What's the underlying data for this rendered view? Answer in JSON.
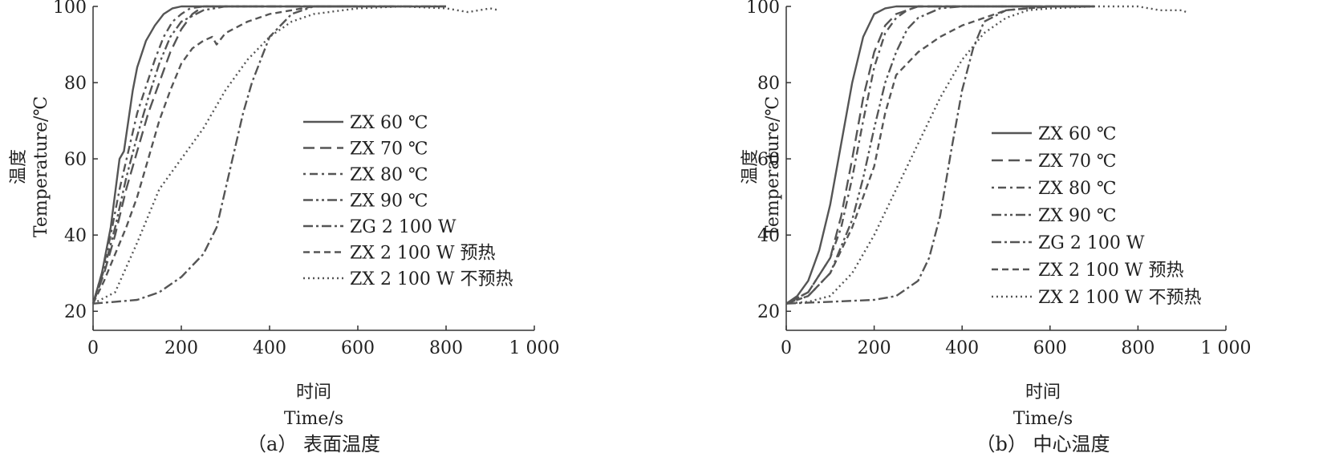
{
  "chart_data": [
    {
      "type": "line",
      "panel": "a",
      "caption": "（a） 表面温度",
      "xlabel_cn": "时间",
      "xlabel_en": "Time/s",
      "ylabel_cn": "温度",
      "ylabel_en": "Temperature/℃",
      "xlim": [
        0,
        1000
      ],
      "ylim": [
        15,
        100
      ],
      "xticks": [
        0,
        200,
        400,
        600,
        800,
        1000
      ],
      "xtick_labels": [
        "0",
        "200",
        "400",
        "600",
        "800",
        "1 000"
      ],
      "yticks": [
        20,
        40,
        60,
        80,
        100
      ],
      "ytick_labels": [
        "20",
        "40",
        "60",
        "80",
        "100"
      ],
      "grid": false,
      "legend_position": "center-right",
      "series": [
        {
          "name": "ZX 60 ℃",
          "dash": "solid",
          "x": [
            0,
            20,
            40,
            60,
            70,
            80,
            90,
            100,
            120,
            140,
            160,
            180,
            200,
            220,
            240,
            300,
            400,
            600,
            800
          ],
          "y": [
            22,
            30,
            42,
            60,
            62,
            70,
            78,
            84,
            91,
            95,
            98,
            99.5,
            100,
            100,
            100,
            100,
            100,
            100,
            100
          ]
        },
        {
          "name": "ZX 70 ℃",
          "dash": "long-dash",
          "x": [
            0,
            25,
            50,
            75,
            100,
            125,
            150,
            175,
            200,
            225,
            250,
            300,
            400,
            600
          ],
          "y": [
            22,
            30,
            40,
            52,
            62,
            72,
            80,
            88,
            94,
            98,
            100,
            100,
            100,
            100
          ]
        },
        {
          "name": "ZX 80 ℃",
          "dash": "dot-dash",
          "x": [
            0,
            20,
            40,
            60,
            80,
            100,
            120,
            140,
            160,
            180,
            200,
            220,
            250,
            300,
            400,
            600
          ],
          "y": [
            22,
            30,
            40,
            52,
            62,
            72,
            79,
            86,
            92,
            96,
            98,
            99.5,
            100,
            100,
            100,
            100
          ]
        },
        {
          "name": "ZX 90 ℃",
          "dash": "dash-dot-dot",
          "x": [
            0,
            25,
            50,
            75,
            100,
            125,
            150,
            175,
            200,
            250,
            300,
            400,
            600
          ],
          "y": [
            22,
            31,
            42,
            55,
            66,
            76,
            85,
            92,
            96,
            99,
            100,
            100,
            100
          ]
        },
        {
          "name": "ZG 2 100 W",
          "dash": "dash-dot",
          "x": [
            0,
            50,
            100,
            150,
            200,
            250,
            280,
            300,
            320,
            340,
            360,
            380,
            400,
            450,
            500,
            600,
            800
          ],
          "y": [
            22,
            22.5,
            23,
            25,
            29,
            35,
            42,
            52,
            62,
            72,
            80,
            86,
            92,
            98,
            100,
            100,
            100
          ]
        },
        {
          "name": "ZX 2 100 W 预热",
          "dash": "dash",
          "x": [
            0,
            25,
            50,
            75,
            100,
            125,
            150,
            175,
            200,
            225,
            250,
            270,
            280,
            300,
            350,
            400,
            450,
            500,
            600,
            700
          ],
          "y": [
            22,
            28,
            35,
            42,
            50,
            60,
            70,
            78,
            85,
            89,
            91,
            92,
            90,
            93,
            96,
            98,
            99,
            100,
            100,
            100
          ]
        },
        {
          "name": "ZX 2 100 W 不预热",
          "dash": "dotted",
          "x": [
            0,
            50,
            100,
            150,
            200,
            250,
            300,
            350,
            400,
            450,
            500,
            600,
            700,
            800,
            850,
            900,
            920
          ],
          "y": [
            22,
            25,
            38,
            52,
            60,
            68,
            78,
            86,
            92,
            96,
            98,
            99.5,
            100,
            99.5,
            98.5,
            99.5,
            99
          ]
        }
      ]
    },
    {
      "type": "line",
      "panel": "b",
      "caption": "（b） 中心温度",
      "xlabel_cn": "时间",
      "xlabel_en": "Time/s",
      "ylabel_cn": "温度",
      "ylabel_en": "Temperature/℃",
      "xlim": [
        0,
        1000
      ],
      "ylim": [
        15,
        100
      ],
      "xticks": [
        0,
        200,
        400,
        600,
        800,
        1000
      ],
      "xtick_labels": [
        "0",
        "200",
        "400",
        "600",
        "800",
        "1 000"
      ],
      "yticks": [
        20,
        40,
        60,
        80,
        100
      ],
      "ytick_labels": [
        "20",
        "40",
        "60",
        "80",
        "100"
      ],
      "grid": false,
      "legend_position": "center-right",
      "series": [
        {
          "name": "ZX 60 ℃",
          "dash": "solid",
          "x": [
            0,
            25,
            50,
            75,
            100,
            125,
            150,
            175,
            200,
            225,
            250,
            300,
            400,
            600,
            700
          ],
          "y": [
            22,
            24,
            28,
            36,
            48,
            64,
            80,
            92,
            98,
            99.5,
            100,
            100,
            100,
            100,
            100
          ]
        },
        {
          "name": "ZX 70 ℃",
          "dash": "long-dash",
          "x": [
            0,
            50,
            100,
            125,
            150,
            175,
            200,
            225,
            250,
            300,
            400,
            600,
            700
          ],
          "y": [
            22,
            25,
            34,
            45,
            60,
            76,
            88,
            95,
            98,
            100,
            100,
            100,
            100
          ]
        },
        {
          "name": "ZX 80 ℃",
          "dash": "dot-dash",
          "x": [
            0,
            50,
            100,
            125,
            150,
            175,
            200,
            225,
            250,
            275,
            300,
            400,
            600,
            700
          ],
          "y": [
            22,
            25,
            34,
            42,
            55,
            70,
            84,
            93,
            97,
            99,
            100,
            100,
            100,
            100
          ]
        },
        {
          "name": "ZX 90 ℃",
          "dash": "dash-dot-dot",
          "x": [
            0,
            50,
            100,
            150,
            175,
            200,
            225,
            250,
            275,
            300,
            350,
            400,
            600,
            700
          ],
          "y": [
            22,
            24,
            30,
            44,
            55,
            68,
            80,
            88,
            94,
            97,
            99.5,
            100,
            100,
            100
          ]
        },
        {
          "name": "ZG 2 100 W",
          "dash": "dash-dot",
          "x": [
            0,
            100,
            200,
            250,
            300,
            325,
            350,
            375,
            400,
            425,
            450,
            500,
            600,
            700
          ],
          "y": [
            22,
            22.5,
            23,
            24,
            28,
            34,
            45,
            62,
            78,
            89,
            96,
            99,
            100,
            100
          ]
        },
        {
          "name": "ZX 2 100 W 预热",
          "dash": "dash",
          "x": [
            0,
            50,
            100,
            150,
            200,
            225,
            250,
            300,
            350,
            400,
            450,
            500,
            600,
            700
          ],
          "y": [
            22,
            24,
            30,
            42,
            58,
            72,
            82,
            88,
            92,
            95,
            97,
            99,
            100,
            100
          ]
        },
        {
          "name": "ZX 2 100 W 不预热",
          "dash": "dotted",
          "x": [
            0,
            50,
            100,
            150,
            200,
            250,
            300,
            350,
            400,
            450,
            500,
            550,
            600,
            700,
            800,
            850,
            900,
            910
          ],
          "y": [
            22,
            22.5,
            24,
            30,
            40,
            52,
            64,
            76,
            86,
            93,
            97,
            99,
            99.5,
            100,
            100,
            99,
            99,
            98.5
          ]
        }
      ]
    }
  ]
}
